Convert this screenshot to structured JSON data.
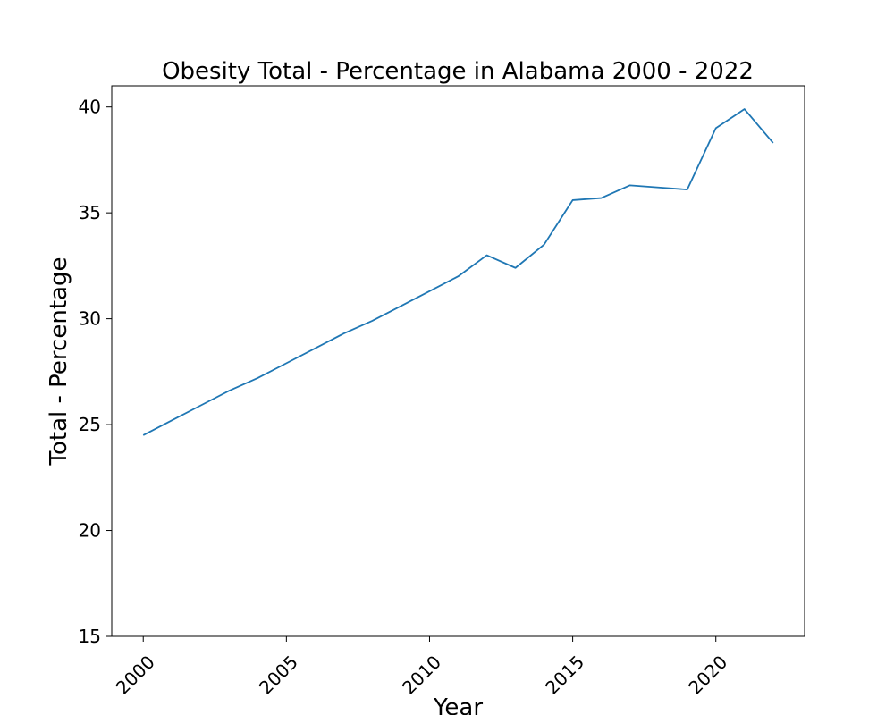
{
  "chart_data": {
    "type": "line",
    "title": "Obesity Total - Percentage in Alabama 2000 - 2022",
    "xlabel": "Year",
    "ylabel": "Total - Percentage",
    "xlim": [
      1998.9,
      2023.1
    ],
    "ylim": [
      15,
      41
    ],
    "xticks": [
      2000,
      2005,
      2010,
      2015,
      2020
    ],
    "yticks": [
      15,
      20,
      25,
      30,
      35,
      40
    ],
    "grid": false,
    "legend": "none",
    "series": [
      {
        "color": "#1f77b4",
        "x": [
          2000,
          2001,
          2002,
          2003,
          2004,
          2005,
          2006,
          2007,
          2008,
          2009,
          2010,
          2011,
          2012,
          2013,
          2014,
          2015,
          2016,
          2017,
          2018,
          2019,
          2020,
          2021,
          2022
        ],
        "y": [
          24.5,
          25.2,
          25.9,
          26.6,
          27.2,
          27.9,
          28.6,
          29.3,
          29.9,
          30.6,
          31.3,
          32.0,
          33.0,
          32.4,
          33.5,
          35.6,
          35.7,
          36.3,
          36.2,
          36.1,
          39.0,
          39.9,
          38.3
        ]
      }
    ]
  }
}
